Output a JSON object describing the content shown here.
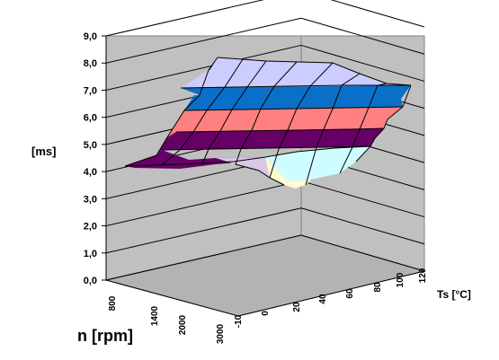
{
  "chart_data": {
    "type": "surface",
    "title": "",
    "zlabel": "[ms]",
    "ylabel": "n [rpm]",
    "xlabel": "Ts [°C]",
    "zlim": [
      0,
      9
    ],
    "z_ticks": [
      "0,0",
      "1,0",
      "2,0",
      "3,0",
      "4,0",
      "5,0",
      "6,0",
      "7,0",
      "8,0",
      "9,0"
    ],
    "n_ticks": [
      "800",
      "1400",
      "2000",
      "3000"
    ],
    "ts_ticks": [
      "-10",
      "0",
      "20",
      "40",
      "60",
      "80",
      "100",
      "120"
    ],
    "grid": true,
    "colors": {
      "floor": "#b3b3b3",
      "wall": "#c0c0c0",
      "band_0_1": "#fffbd0",
      "band_1_2": "#cffcff",
      "band_2_3": "#660066",
      "band_3_4": "#ff8080",
      "band_4_5": "#0a6fc8",
      "band_5_6": "#ccccff",
      "band_6_7": "#000080"
    }
  }
}
